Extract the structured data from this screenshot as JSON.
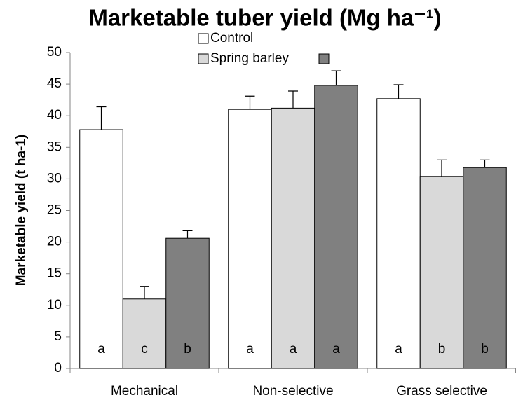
{
  "chart_data": {
    "type": "bar",
    "title": "Marketable tuber yield (Mg ha⁻¹)",
    "y_label": "Marketable yield (t ha-1)",
    "categories": [
      "Mechanical",
      "Non-selective",
      "Grass selective"
    ],
    "series": [
      {
        "name": "Control",
        "color": "#ffffff",
        "values": [
          37.8,
          41.0,
          42.7
        ],
        "errors": [
          3.6,
          2.1,
          2.2
        ],
        "letters": [
          "a",
          "a",
          "a"
        ]
      },
      {
        "name": "Spring barley",
        "color": "#d9d9d9",
        "values": [
          11.0,
          41.2,
          30.4
        ],
        "errors": [
          2.0,
          2.7,
          2.6
        ],
        "letters": [
          "c",
          "a",
          "b"
        ]
      },
      {
        "name": null,
        "color": "#808080",
        "values": [
          20.6,
          44.8,
          31.8
        ],
        "errors": [
          1.2,
          2.3,
          1.2
        ],
        "letters": [
          "b",
          "a",
          "b"
        ]
      }
    ],
    "ylim": [
      0,
      50
    ],
    "yticks": [
      0,
      5,
      10,
      15,
      20,
      25,
      30,
      35,
      40,
      45,
      50
    ]
  }
}
